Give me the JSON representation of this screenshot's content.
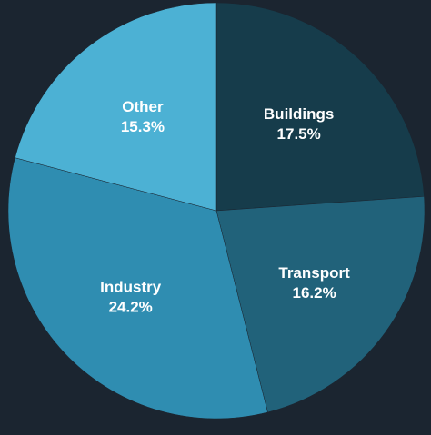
{
  "chart_data": {
    "type": "pie",
    "title": "",
    "categories": [
      "Buildings",
      "Transport",
      "Industry",
      "Other"
    ],
    "values": [
      17.5,
      16.2,
      24.2,
      15.3
    ],
    "value_labels": [
      "17.5%",
      "16.2%",
      "24.2%",
      "15.3%"
    ],
    "colors": [
      "#163c4b",
      "#21627a",
      "#2f8db1",
      "#4cb1d4"
    ],
    "legend": "none",
    "start_angle": "12 o'clock",
    "direction": "clockwise"
  },
  "colors": {
    "background": "#1b2530",
    "label_text": "#ffffff",
    "slice_stroke": "#1b2530"
  }
}
